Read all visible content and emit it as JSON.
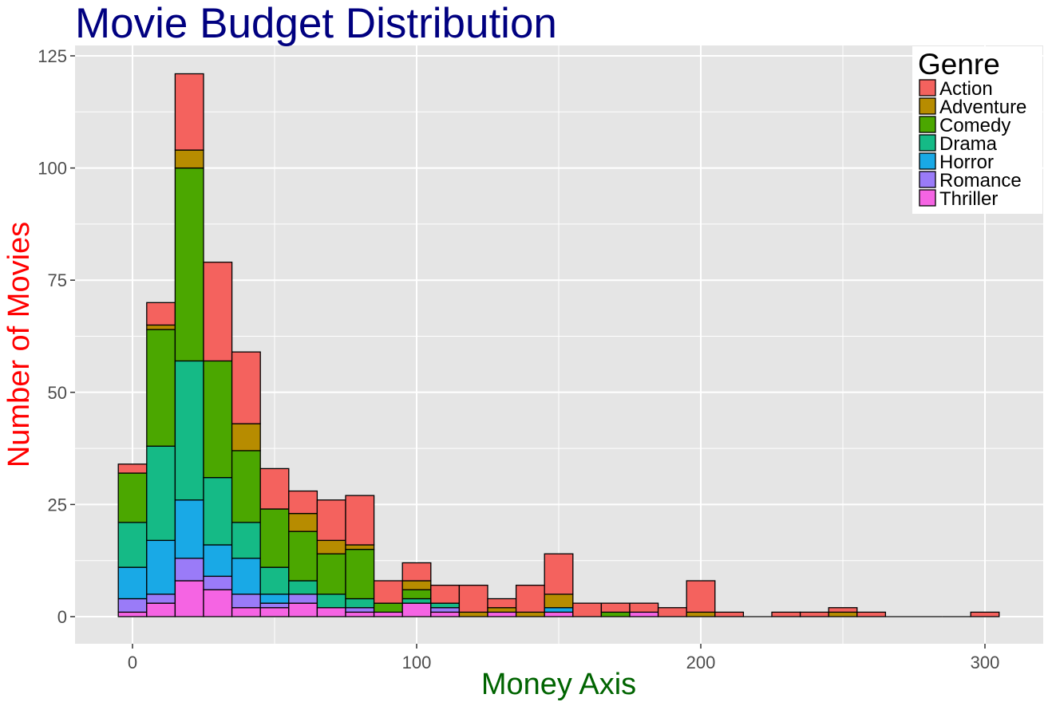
{
  "chart_data": {
    "type": "bar",
    "stacked": true,
    "histogram": true,
    "title": "Movie Budget Distribution",
    "xlabel": "Money Axis",
    "ylabel": "Number of Movies",
    "xlim": [
      -5,
      305
    ],
    "ylim": [
      0,
      125
    ],
    "bin_width": 10,
    "x_ticks": [
      0,
      100,
      200,
      300
    ],
    "y_ticks": [
      0,
      25,
      50,
      75,
      100,
      125
    ],
    "grid": true,
    "legend": {
      "title": "Genre",
      "placement": "top-right"
    },
    "x": [
      0,
      10,
      20,
      30,
      40,
      50,
      60,
      70,
      80,
      90,
      100,
      110,
      120,
      130,
      140,
      150,
      160,
      170,
      180,
      190,
      200,
      210,
      220,
      230,
      240,
      250,
      260,
      270,
      280,
      290,
      300
    ],
    "series": [
      {
        "name": "Thriller",
        "color": "#F564E3",
        "values": [
          1,
          3,
          8,
          6,
          2,
          2,
          3,
          2,
          1,
          1,
          3,
          1,
          0,
          1,
          0,
          1,
          0,
          0,
          1,
          0,
          0,
          0,
          0,
          0,
          0,
          0,
          0,
          0,
          0,
          0,
          0
        ]
      },
      {
        "name": "Romance",
        "color": "#9A7BF8",
        "values": [
          3,
          2,
          5,
          3,
          3,
          1,
          2,
          0,
          1,
          0,
          0,
          1,
          0,
          0,
          0,
          0,
          0,
          0,
          0,
          0,
          0,
          0,
          0,
          0,
          0,
          0,
          0,
          0,
          0,
          0,
          0
        ]
      },
      {
        "name": "Horror",
        "color": "#19A9E6",
        "values": [
          7,
          12,
          13,
          7,
          8,
          2,
          0,
          0,
          0,
          0,
          0,
          0,
          0,
          0,
          0,
          1,
          0,
          0,
          0,
          0,
          0,
          0,
          0,
          0,
          0,
          0,
          0,
          0,
          0,
          0,
          0
        ]
      },
      {
        "name": "Drama",
        "color": "#15BA86",
        "values": [
          10,
          21,
          31,
          15,
          8,
          6,
          3,
          3,
          2,
          0,
          1,
          1,
          0,
          0,
          0,
          0,
          0,
          0,
          0,
          0,
          0,
          0,
          0,
          0,
          0,
          0,
          0,
          0,
          0,
          0,
          0
        ]
      },
      {
        "name": "Comedy",
        "color": "#4BA700",
        "values": [
          11,
          26,
          43,
          26,
          16,
          13,
          11,
          9,
          11,
          2,
          2,
          0,
          0,
          0,
          0,
          0,
          0,
          1,
          0,
          0,
          0,
          0,
          0,
          0,
          0,
          0,
          0,
          0,
          0,
          0,
          0
        ]
      },
      {
        "name": "Adventure",
        "color": "#B78C00",
        "values": [
          0,
          1,
          4,
          0,
          6,
          0,
          4,
          3,
          1,
          0,
          2,
          0,
          1,
          1,
          1,
          3,
          0,
          0,
          0,
          0,
          1,
          0,
          0,
          0,
          0,
          1,
          0,
          0,
          0,
          0,
          0
        ]
      },
      {
        "name": "Action",
        "color": "#F4625E",
        "values": [
          2,
          5,
          17,
          22,
          16,
          9,
          5,
          9,
          11,
          5,
          4,
          4,
          6,
          2,
          6,
          9,
          3,
          2,
          2,
          2,
          7,
          1,
          0,
          1,
          1,
          1,
          1,
          0,
          0,
          0,
          1
        ]
      }
    ],
    "legend_order": [
      "Action",
      "Adventure",
      "Comedy",
      "Drama",
      "Horror",
      "Romance",
      "Thriller"
    ],
    "colors": {
      "title": "#000080",
      "xlabel": "#006400",
      "ylabel": "#FF0000",
      "panel_background": "#E5E5E5",
      "grid": "#FFFFFF",
      "bar_outline": "#000000"
    }
  }
}
